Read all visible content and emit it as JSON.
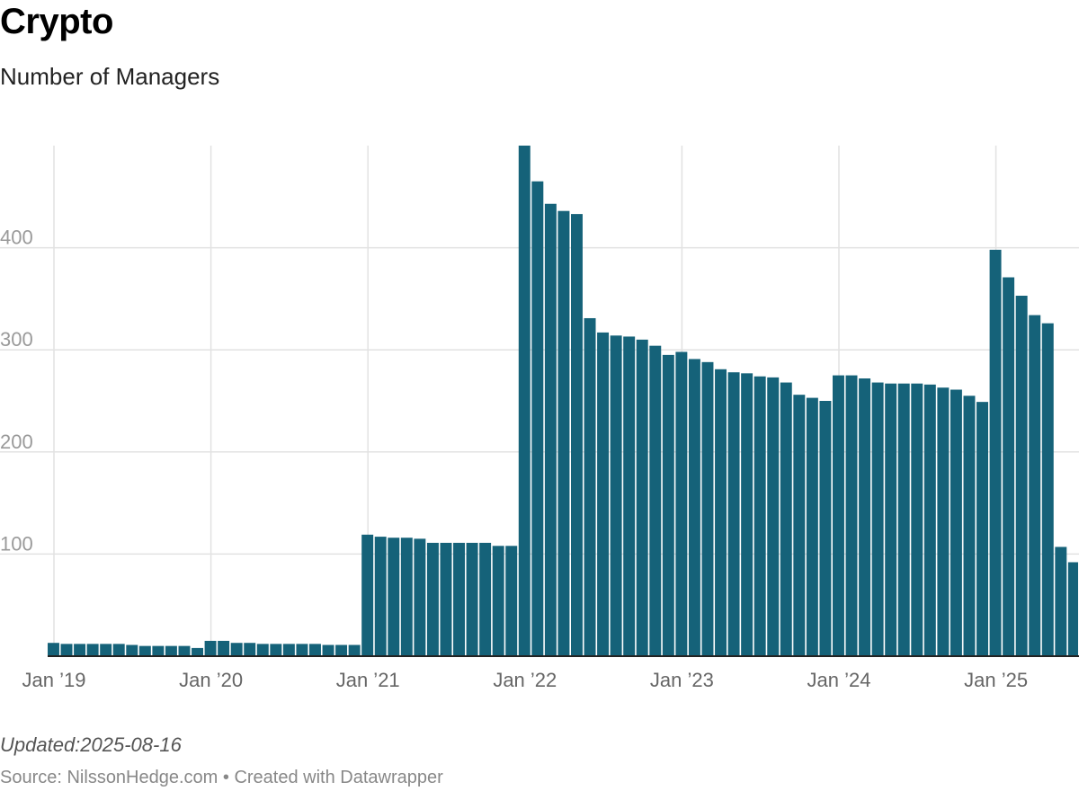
{
  "header": {
    "title": "Crypto",
    "subtitle": "Number of Managers"
  },
  "footer": {
    "updated": "Updated:2025-08-16",
    "source": "Source: NilssonHedge.com • Created with Datawrapper"
  },
  "colors": {
    "bar": "#156279",
    "grid": "#e2e2e2",
    "baseline": "#222222"
  },
  "chart_data": {
    "type": "bar",
    "title": "Crypto",
    "subtitle": "Number of Managers",
    "x_start": "2019-01",
    "frequency": "monthly",
    "ylim": [
      0,
      500
    ],
    "yticks": [
      100,
      200,
      300,
      400
    ],
    "grid": true,
    "xticks": [
      {
        "label": "Jan ’19",
        "date": "2019-01"
      },
      {
        "label": "Jan ’20",
        "date": "2020-01"
      },
      {
        "label": "Jan ’21",
        "date": "2021-01"
      },
      {
        "label": "Jan ’22",
        "date": "2022-01"
      },
      {
        "label": "Jan ’23",
        "date": "2023-01"
      },
      {
        "label": "Jan ’24",
        "date": "2024-01"
      },
      {
        "label": "Jan ’25",
        "date": "2025-01"
      }
    ],
    "values": [
      13,
      12,
      12,
      12,
      12,
      12,
      11,
      10,
      10,
      10,
      10,
      8,
      15,
      15,
      13,
      13,
      12,
      12,
      12,
      12,
      12,
      11,
      11,
      11,
      119,
      117,
      116,
      116,
      115,
      111,
      111,
      111,
      111,
      111,
      108,
      108,
      500,
      465,
      443,
      436,
      433,
      331,
      317,
      314,
      313,
      310,
      304,
      295,
      298,
      291,
      288,
      281,
      278,
      277,
      274,
      273,
      268,
      256,
      253,
      250,
      275,
      275,
      272,
      268,
      267,
      267,
      267,
      266,
      263,
      261,
      255,
      249,
      398,
      371,
      353,
      334,
      326,
      107,
      92
    ]
  }
}
